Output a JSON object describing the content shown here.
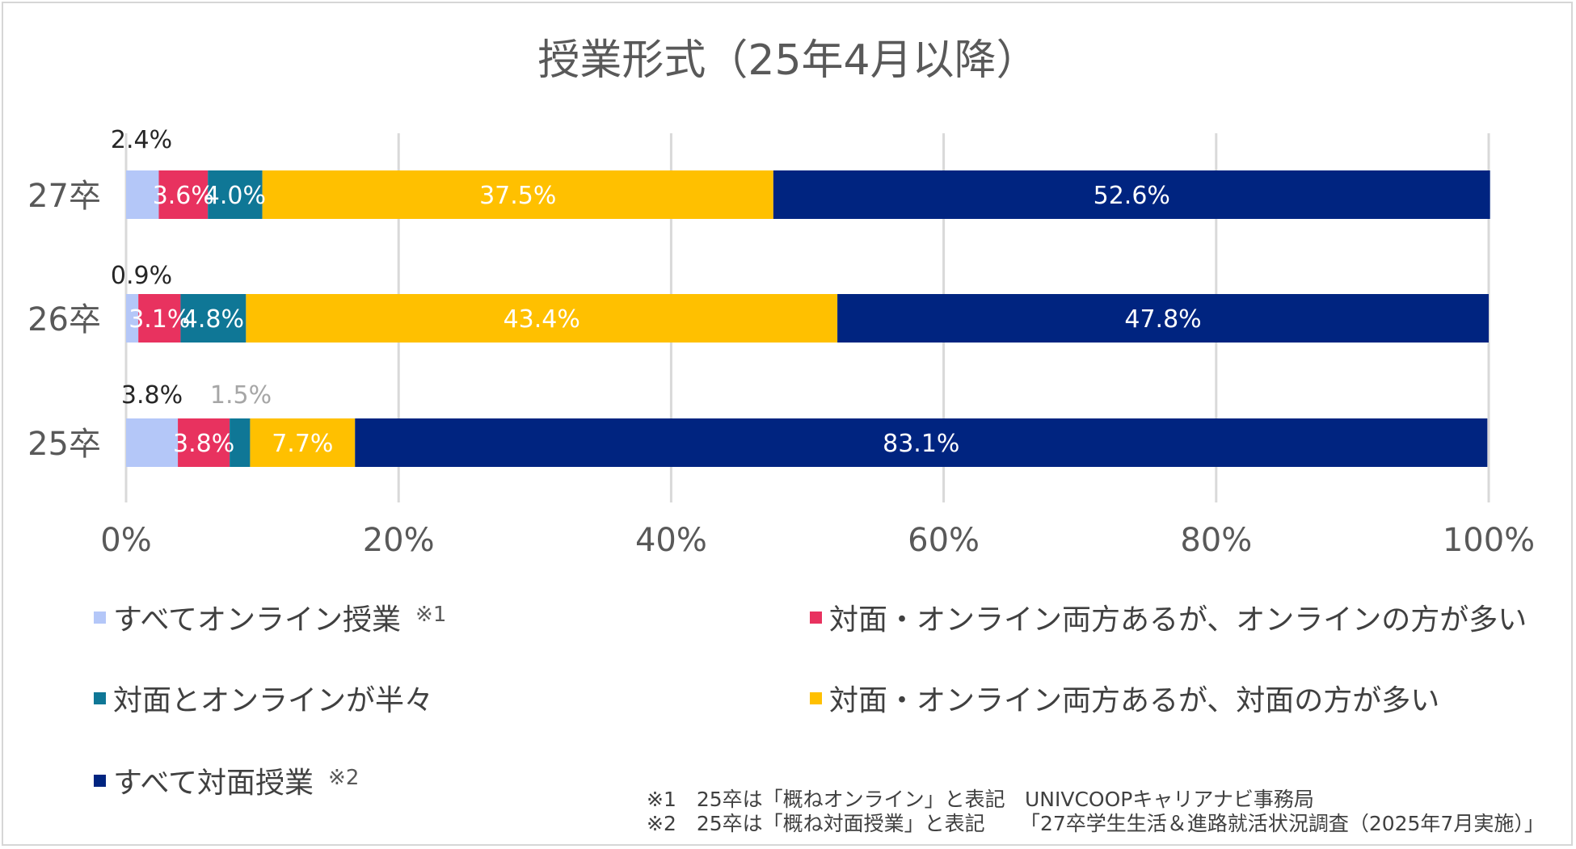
{
  "chart_data": {
    "type": "bar",
    "orientation": "horizontal",
    "stacked": true,
    "title": "授業形式（25年4月以降）",
    "categories": [
      "27卒",
      "26卒",
      "25卒"
    ],
    "x_ticks": [
      "0%",
      "20%",
      "40%",
      "60%",
      "80%",
      "100%"
    ],
    "xlim": [
      0,
      100
    ],
    "grid": "vertical",
    "legend_position": "bottom",
    "series": [
      {
        "name": "すべてオンライン授業",
        "mark": "※1",
        "color": "#b4c7f8",
        "values": [
          2.4,
          0.9,
          3.8
        ],
        "labels": [
          "2.4%",
          "0.9%",
          "3.8%"
        ]
      },
      {
        "name": "対面・オンライン両方あるが、オンラインの方が多い",
        "mark": "",
        "color": "#e8325f",
        "values": [
          3.6,
          3.1,
          3.8
        ],
        "labels": [
          "3.6%",
          "3.1%",
          "3.8%"
        ]
      },
      {
        "name": "対面とオンラインが半々",
        "mark": "",
        "color": "#0f7796",
        "values": [
          4.0,
          4.8,
          1.5
        ],
        "labels": [
          "4.0%",
          "4.8%",
          "1.5%"
        ]
      },
      {
        "name": "対面・オンライン両方あるが、対面の方が多い",
        "mark": "",
        "color": "#ffc000",
        "values": [
          37.5,
          43.4,
          7.7
        ],
        "labels": [
          "37.5%",
          "43.4%",
          "7.7%"
        ]
      },
      {
        "name": "すべて対面授業",
        "mark": "※2",
        "color": "#002480",
        "values": [
          52.6,
          47.8,
          83.1
        ],
        "labels": [
          "52.6%",
          "47.8%",
          "83.1%"
        ]
      }
    ]
  },
  "notes": {
    "note1": "※1　25卒は「概ねオンライン」と表記",
    "note2": "※2　25卒は「概ね対面授業」と表記",
    "source1": "UNIVCOOPキャリアナビ事務局",
    "source2": "「27卒学生生活＆進路就活状況調査（2025年7月実施）」"
  }
}
